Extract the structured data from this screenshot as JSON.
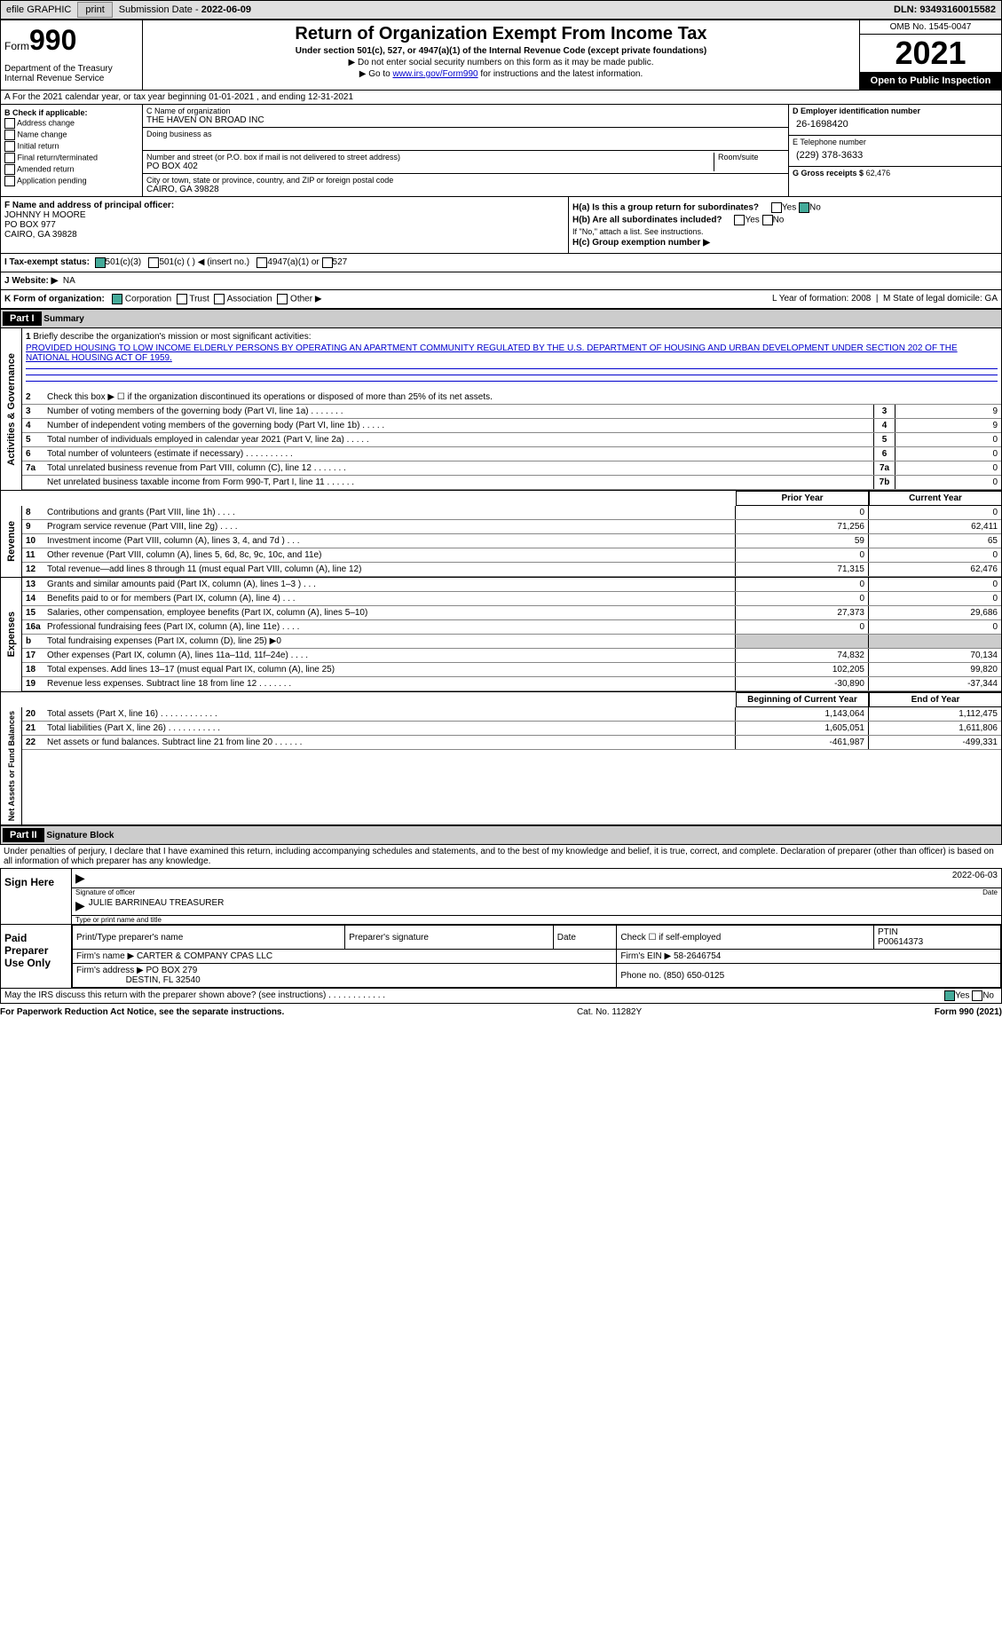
{
  "topbar": {
    "efile": "efile GRAPHIC",
    "print": "print",
    "sub_label": "Submission Date - ",
    "sub_date": "2022-06-09",
    "dln": "DLN: 93493160015582"
  },
  "header": {
    "form_word": "Form",
    "form_num": "990",
    "dept": "Department of the Treasury\nInternal Revenue Service",
    "title": "Return of Organization Exempt From Income Tax",
    "sub": "Under section 501(c), 527, or 4947(a)(1) of the Internal Revenue Code (except private foundations)",
    "note1": "▶ Do not enter social security numbers on this form as it may be made public.",
    "note2_pre": "▶ Go to ",
    "note2_link": "www.irs.gov/Form990",
    "note2_post": " for instructions and the latest information.",
    "omb": "OMB No. 1545-0047",
    "year": "2021",
    "inspect": "Open to Public Inspection"
  },
  "row_a": "A For the 2021 calendar year, or tax year beginning 01-01-2021   , and ending 12-31-2021",
  "box_b": {
    "label": "B Check if applicable:",
    "items": [
      "Address change",
      "Name change",
      "Initial return",
      "Final return/terminated",
      "Amended return",
      "Application pending"
    ]
  },
  "box_c": {
    "name_lbl": "C Name of organization",
    "name": "THE HAVEN ON BROAD INC",
    "dba_lbl": "Doing business as",
    "dba": "",
    "addr_lbl": "Number and street (or P.O. box if mail is not delivered to street address)",
    "room_lbl": "Room/suite",
    "addr": "PO BOX 402",
    "city_lbl": "City or town, state or province, country, and ZIP or foreign postal code",
    "city": "CAIRO, GA  39828"
  },
  "box_d": {
    "ein_lbl": "D Employer identification number",
    "ein": "26-1698420",
    "tel_lbl": "E Telephone number",
    "tel": "(229) 378-3633",
    "gross_lbl": "G Gross receipts $",
    "gross": "62,476"
  },
  "box_f": {
    "lbl": "F Name and address of principal officer:",
    "name": "JOHNNY H MOORE",
    "addr1": "PO BOX 977",
    "addr2": "CAIRO, GA  39828"
  },
  "box_h": {
    "a": "H(a)  Is this a group return for subordinates?",
    "b": "H(b)  Are all subordinates included?",
    "b_note": "If \"No,\" attach a list. See instructions.",
    "c": "H(c)  Group exemption number ▶",
    "yes": "Yes",
    "no": "No"
  },
  "status": {
    "lbl": "I   Tax-exempt status:",
    "opts": [
      "501(c)(3)",
      "501(c) (  ) ◀ (insert no.)",
      "4947(a)(1) or",
      "527"
    ]
  },
  "website": {
    "lbl": "J   Website: ▶",
    "val": "NA"
  },
  "kform": {
    "lbl": "K Form of organization:",
    "opts": [
      "Corporation",
      "Trust",
      "Association",
      "Other ▶"
    ],
    "l": "L Year of formation: 2008",
    "m": "M State of legal domicile: GA"
  },
  "part1": {
    "hdr": "Part I",
    "title": "Summary"
  },
  "briefly": {
    "num": "1",
    "lbl": "Briefly describe the organization's mission or most significant activities:",
    "text": "PROVIDED HOUSING TO LOW INCOME ELDERLY PERSONS BY OPERATING AN APARTMENT COMMUNITY REGULATED BY THE U.S. DEPARTMENT OF HOUSING AND URBAN DEVELOPMENT UNDER SECTION 202 OF THE NATIONAL HOUSING ACT OF 1959."
  },
  "line2": "Check this box ▶ ☐ if the organization discontinued its operations or disposed of more than 25% of its net assets.",
  "summary_lines": [
    {
      "n": "3",
      "t": "Number of voting members of the governing body (Part VI, line 1a)   .    .    .    .    .    .    .",
      "b": "3",
      "v": "9"
    },
    {
      "n": "4",
      "t": "Number of independent voting members of the governing body (Part VI, line 1b)   .    .    .    .    .",
      "b": "4",
      "v": "9"
    },
    {
      "n": "5",
      "t": "Total number of individuals employed in calendar year 2021 (Part V, line 2a)   .    .    .    .    .",
      "b": "5",
      "v": "0"
    },
    {
      "n": "6",
      "t": "Total number of volunteers (estimate if necessary)    .    .    .    .    .    .    .    .    .    .",
      "b": "6",
      "v": "0"
    },
    {
      "n": "7a",
      "t": "Total unrelated business revenue from Part VIII, column (C), line 12   .    .    .    .    .    .    .",
      "b": "7a",
      "v": "0"
    },
    {
      "n": "",
      "t": "Net unrelated business taxable income from Form 990-T, Part I, line 11   .    .    .    .    .    .",
      "b": "7b",
      "v": "0"
    }
  ],
  "col_hdrs": {
    "prior": "Prior Year",
    "current": "Current Year",
    "boy": "Beginning of Current Year",
    "eoy": "End of Year"
  },
  "revenue": [
    {
      "n": "8",
      "t": "Contributions and grants (Part VIII, line 1h)   .    .    .    .",
      "p": "0",
      "c": "0"
    },
    {
      "n": "9",
      "t": "Program service revenue (Part VIII, line 2g)    .    .    .    .",
      "p": "71,256",
      "c": "62,411"
    },
    {
      "n": "10",
      "t": "Investment income (Part VIII, column (A), lines 3, 4, and 7d )    .    .    .",
      "p": "59",
      "c": "65"
    },
    {
      "n": "11",
      "t": "Other revenue (Part VIII, column (A), lines 5, 6d, 8c, 9c, 10c, and 11e)",
      "p": "0",
      "c": "0"
    },
    {
      "n": "12",
      "t": "Total revenue—add lines 8 through 11 (must equal Part VIII, column (A), line 12)",
      "p": "71,315",
      "c": "62,476"
    }
  ],
  "expenses": [
    {
      "n": "13",
      "t": "Grants and similar amounts paid (Part IX, column (A), lines 1–3 )   .    .    .",
      "p": "0",
      "c": "0"
    },
    {
      "n": "14",
      "t": "Benefits paid to or for members (Part IX, column (A), line 4)   .    .    .",
      "p": "0",
      "c": "0"
    },
    {
      "n": "15",
      "t": "Salaries, other compensation, employee benefits (Part IX, column (A), lines 5–10)",
      "p": "27,373",
      "c": "29,686"
    },
    {
      "n": "16a",
      "t": "Professional fundraising fees (Part IX, column (A), line 11e)    .    .    .    .",
      "p": "0",
      "c": "0"
    },
    {
      "n": "b",
      "t": "Total fundraising expenses (Part IX, column (D), line 25) ▶0",
      "p": "",
      "c": "",
      "shade": true
    },
    {
      "n": "17",
      "t": "Other expenses (Part IX, column (A), lines 11a–11d, 11f–24e)    .    .    .    .",
      "p": "74,832",
      "c": "70,134"
    },
    {
      "n": "18",
      "t": "Total expenses. Add lines 13–17 (must equal Part IX, column (A), line 25)",
      "p": "102,205",
      "c": "99,820"
    },
    {
      "n": "19",
      "t": "Revenue less expenses. Subtract line 18 from line 12  .    .    .    .    .    .    .",
      "p": "-30,890",
      "c": "-37,344"
    }
  ],
  "netassets": [
    {
      "n": "20",
      "t": "Total assets (Part X, line 16)  .    .    .    .    .    .    .    .    .    .    .    .",
      "p": "1,143,064",
      "c": "1,112,475"
    },
    {
      "n": "21",
      "t": "Total liabilities (Part X, line 26)   .    .    .    .    .    .    .    .    .    .    .",
      "p": "1,605,051",
      "c": "1,611,806"
    },
    {
      "n": "22",
      "t": "Net assets or fund balances. Subtract line 21 from line 20  .    .    .    .    .    .",
      "p": "-461,987",
      "c": "-499,331"
    }
  ],
  "vert_labels": {
    "ag": "Activities & Governance",
    "rev": "Revenue",
    "exp": "Expenses",
    "na": "Net Assets or\nFund Balances"
  },
  "part2": {
    "hdr": "Part II",
    "title": "Signature Block"
  },
  "perjury": "Under penalties of perjury, I declare that I have examined this return, including accompanying schedules and statements, and to the best of my knowledge and belief, it is true, correct, and complete. Declaration of preparer (other than officer) is based on all information of which preparer has any knowledge.",
  "sign": {
    "here": "Sign Here",
    "sig_lbl": "Signature of officer",
    "date_lbl": "Date",
    "date": "2022-06-03",
    "name": "JULIE BARRINEAU  TREASURER",
    "name_lbl": "Type or print name and title"
  },
  "paid": {
    "here": "Paid Preparer Use Only",
    "h1": "Print/Type preparer's name",
    "h2": "Preparer's signature",
    "h3": "Date",
    "h4": "Check ☐ if self-employed",
    "h5": "PTIN",
    "ptin": "P00614373",
    "firm_lbl": "Firm's name     ▶",
    "firm": "CARTER & COMPANY CPAS LLC",
    "ein_lbl": "Firm's EIN ▶",
    "ein": "58-2646754",
    "addr_lbl": "Firm's address ▶",
    "addr1": "PO BOX 279",
    "addr2": "DESTIN, FL  32540",
    "phone_lbl": "Phone no.",
    "phone": "(850) 650-0125"
  },
  "discuss": "May the IRS discuss this return with the preparer shown above? (see instructions)    .    .    .    .    .    .    .    .    .    .    .    .",
  "footer": {
    "left": "For Paperwork Reduction Act Notice, see the separate instructions.",
    "mid": "Cat. No. 11282Y",
    "right": "Form 990 (2021)"
  }
}
